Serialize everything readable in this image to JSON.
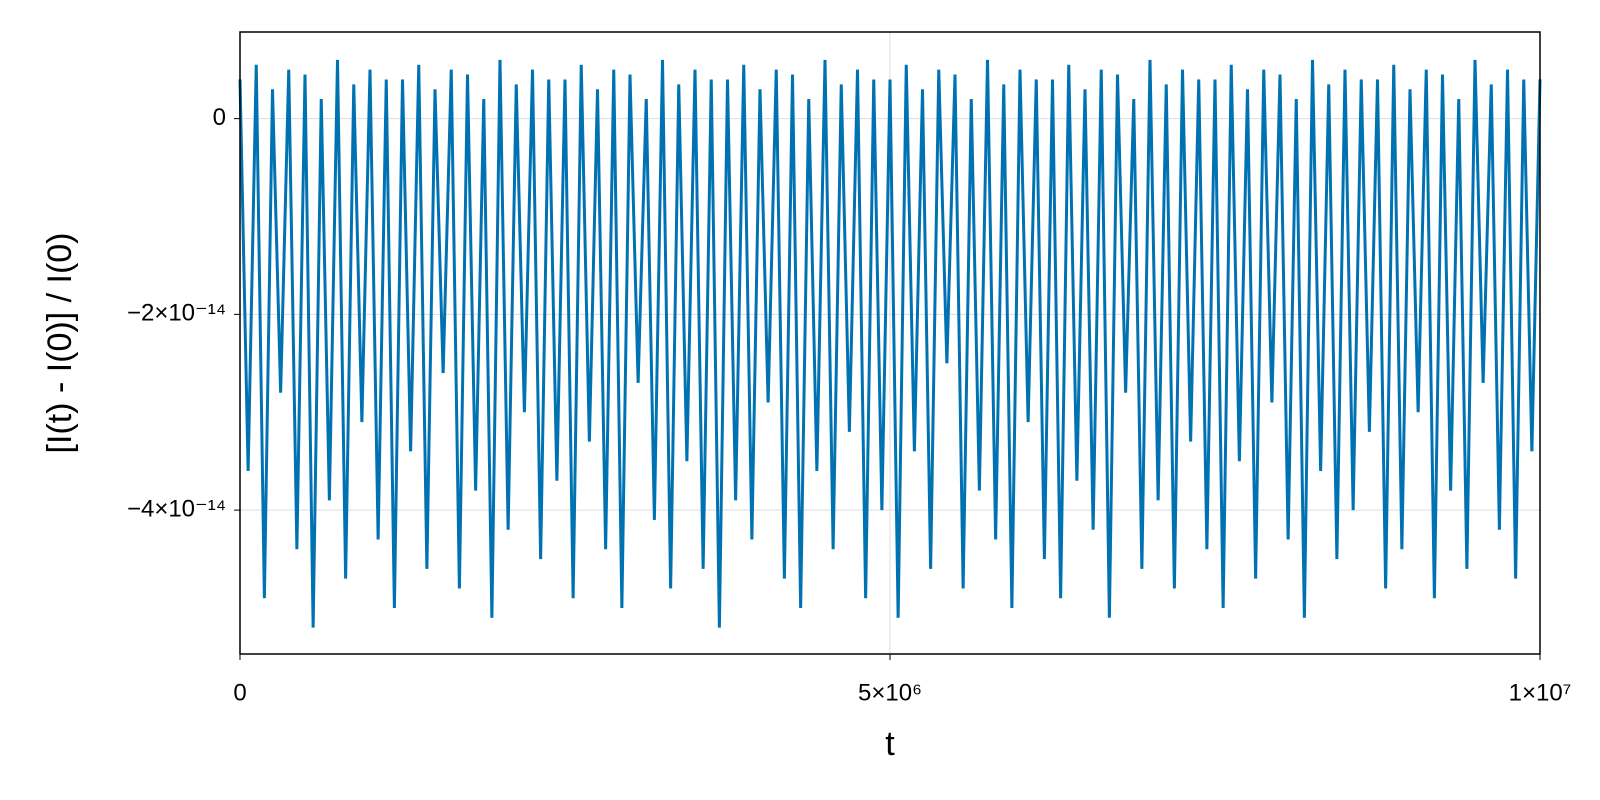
{
  "chart_data": {
    "type": "line",
    "x_label": "t",
    "y_label": "[I(t) - I(0)] / I(0)",
    "color": "#0072b2",
    "grid": true,
    "xlim": [
      0,
      10000000
    ],
    "ylim": [
      -5.47e-14,
      8.85e-15
    ],
    "xticks": [
      0,
      {
        "value": 5000000,
        "label": "5×10⁶"
      },
      {
        "value": 10000000,
        "label": "1×10⁷"
      }
    ],
    "yticks": [
      0,
      {
        "value": -2e-14,
        "label": "−2×10⁻¹⁴"
      },
      {
        "value": -4e-14,
        "label": "−4×10⁻¹⁴"
      }
    ],
    "x": [
      0,
      62500,
      125000,
      187500,
      250000,
      312500,
      375000,
      437500,
      500000,
      562500,
      625000,
      687500,
      750000,
      812500,
      875000,
      937500,
      1000000,
      1062500,
      1125000,
      1187500,
      1250000,
      1312500,
      1375000,
      1437500,
      1500000,
      1562500,
      1625000,
      1687500,
      1750000,
      1812500,
      1875000,
      1937500,
      2000000,
      2062500,
      2125000,
      2187500,
      2250000,
      2312500,
      2375000,
      2437500,
      2500000,
      2562500,
      2625000,
      2687500,
      2750000,
      2812500,
      2875000,
      2937500,
      3000000,
      3062500,
      3125000,
      3187500,
      3250000,
      3312500,
      3375000,
      3437500,
      3500000,
      3562500,
      3625000,
      3687500,
      3750000,
      3812500,
      3875000,
      3937500,
      4000000,
      4062500,
      4125000,
      4187500,
      4250000,
      4312500,
      4375000,
      4437500,
      4500000,
      4562500,
      4625000,
      4687500,
      4750000,
      4812500,
      4875000,
      4937500,
      5000000,
      5062500,
      5125000,
      5187500,
      5250000,
      5312500,
      5375000,
      5437500,
      5500000,
      5562500,
      5625000,
      5687500,
      5750000,
      5812500,
      5875000,
      5937500,
      6000000,
      6062500,
      6125000,
      6187500,
      6250000,
      6312500,
      6375000,
      6437500,
      6500000,
      6562500,
      6625000,
      6687500,
      6750000,
      6812500,
      6875000,
      6937500,
      7000000,
      7062500,
      7125000,
      7187500,
      7250000,
      7312500,
      7375000,
      7437500,
      7500000,
      7562500,
      7625000,
      7687500,
      7750000,
      7812500,
      7875000,
      7937500,
      8000000,
      8062500,
      8125000,
      8187500,
      8250000,
      8312500,
      8375000,
      8437500,
      8500000,
      8562500,
      8625000,
      8687500,
      8750000,
      8812500,
      8875000,
      8937500,
      9000000,
      9062500,
      9125000,
      9187500,
      9250000,
      9312500,
      9375000,
      9437500,
      9500000,
      9562500,
      9625000,
      9687500,
      9750000,
      9812500,
      9875000,
      9937500,
      10000000
    ],
    "values": [
      4e-15,
      -3.6e-14,
      5.5e-15,
      -4.9e-14,
      3e-15,
      -2.8e-14,
      5e-15,
      -4.4e-14,
      4.5e-15,
      -5.2e-14,
      2e-15,
      -3.9e-14,
      6e-15,
      -4.7e-14,
      3.5e-15,
      -3.1e-14,
      5e-15,
      -4.3e-14,
      4e-15,
      -5e-14,
      4e-15,
      -3.4e-14,
      5.5e-15,
      -4.6e-14,
      3e-15,
      -2.6e-14,
      5e-15,
      -4.8e-14,
      4.5e-15,
      -3.8e-14,
      2e-15,
      -5.1e-14,
      6e-15,
      -4.2e-14,
      3.5e-15,
      -3e-14,
      5e-15,
      -4.5e-14,
      4e-15,
      -3.7e-14,
      4e-15,
      -4.9e-14,
      5.5e-15,
      -3.3e-14,
      3e-15,
      -4.4e-14,
      5e-15,
      -5e-14,
      4.5e-15,
      -2.7e-14,
      2e-15,
      -4.1e-14,
      6e-15,
      -4.8e-14,
      3.5e-15,
      -3.5e-14,
      5e-15,
      -4.6e-14,
      4e-15,
      -5.2e-14,
      4e-15,
      -3.9e-14,
      5.5e-15,
      -4.3e-14,
      3e-15,
      -2.9e-14,
      5e-15,
      -4.7e-14,
      4.5e-15,
      -5e-14,
      2e-15,
      -3.6e-14,
      6e-15,
      -4.4e-14,
      3.5e-15,
      -3.2e-14,
      5e-15,
      -4.9e-14,
      4e-15,
      -4e-14,
      4e-15,
      -5.1e-14,
      5.5e-15,
      -3.4e-14,
      3e-15,
      -4.6e-14,
      5e-15,
      -2.5e-14,
      4.5e-15,
      -4.8e-14,
      2e-15,
      -3.8e-14,
      6e-15,
      -4.3e-14,
      3.5e-15,
      -5e-14,
      5e-15,
      -3.1e-14,
      4e-15,
      -4.5e-14,
      4e-15,
      -4.9e-14,
      5.5e-15,
      -3.7e-14,
      3e-15,
      -4.2e-14,
      5e-15,
      -5.1e-14,
      4.5e-15,
      -2.8e-14,
      2e-15,
      -4.6e-14,
      6e-15,
      -3.9e-14,
      3.5e-15,
      -4.8e-14,
      5e-15,
      -3.3e-14,
      4e-15,
      -4.4e-14,
      4e-15,
      -5e-14,
      5.5e-15,
      -3.5e-14,
      3e-15,
      -4.7e-14,
      5e-15,
      -2.9e-14,
      4.5e-15,
      -4.3e-14,
      2e-15,
      -5.1e-14,
      6e-15,
      -3.6e-14,
      3.5e-15,
      -4.5e-14,
      5e-15,
      -4e-14,
      4e-15,
      -3.2e-14,
      4e-15,
      -4.8e-14,
      5.5e-15,
      -4.4e-14,
      3e-15,
      -3e-14,
      5e-15,
      -4.9e-14,
      4.5e-15,
      -3.8e-14,
      2e-15,
      -4.6e-14,
      6e-15,
      -2.7e-14,
      3.5e-15,
      -4.2e-14,
      5e-15,
      -4.7e-14,
      4e-15,
      -3.4e-14,
      4e-15
    ]
  }
}
